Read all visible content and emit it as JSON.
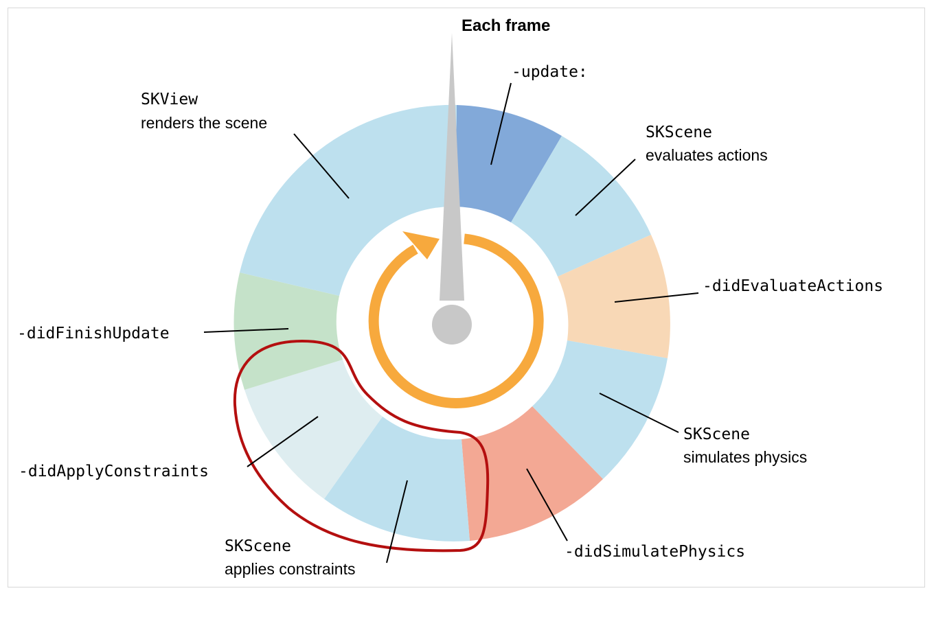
{
  "title": "Each frame",
  "segments": [
    {
      "id": "update",
      "color": "#82a9d9"
    },
    {
      "id": "evaluates-actions",
      "color": "#bde0ee"
    },
    {
      "id": "did-evaluate-actions",
      "color": "#f8d8b6"
    },
    {
      "id": "simulates-physics",
      "color": "#bde0ee"
    },
    {
      "id": "did-simulate-physics",
      "color": "#f3a894"
    },
    {
      "id": "applies-constraints",
      "color": "#bde0ee"
    },
    {
      "id": "did-apply-constraints",
      "color": "#deedf0"
    },
    {
      "id": "did-finish-update",
      "color": "#c5e2c9"
    },
    {
      "id": "renders-scene",
      "color": "#bde0ee"
    }
  ],
  "labels": {
    "update": {
      "code": "-update:"
    },
    "evaluates_actions": {
      "code": "SKScene",
      "text": "evaluates actions"
    },
    "did_evaluate_actions": {
      "code": "-didEvaluateActions"
    },
    "simulates_physics": {
      "code": "SKScene",
      "text": "simulates physics"
    },
    "did_simulate_physics": {
      "code": "-didSimulatePhysics"
    },
    "applies_constraints": {
      "code": "SKScene",
      "text": "applies constraints"
    },
    "did_apply_constraints": {
      "code": "-didApplyConstraints"
    },
    "did_finish_update": {
      "code": "-didFinishUpdate"
    },
    "renders_scene": {
      "code": "SKView",
      "text": "renders the scene"
    }
  },
  "colors": {
    "loop_arrow": "#f7a93d",
    "hand": "#c8c8c8",
    "highlight": "#b40f0f",
    "border": "#d7d7d7"
  }
}
